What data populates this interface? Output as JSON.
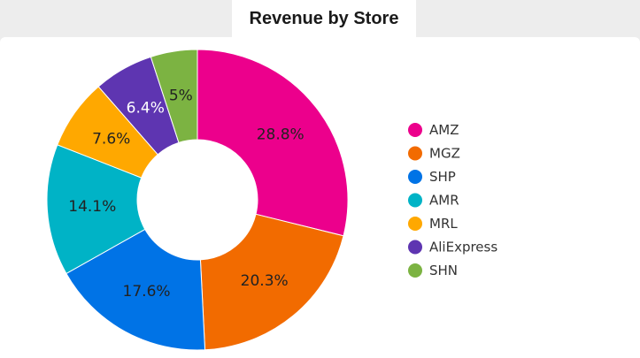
{
  "chart_data": {
    "type": "pie",
    "donut": true,
    "title": "Revenue by Store",
    "categories": [
      "AMZ",
      "MGZ",
      "SHP",
      "AMR",
      "MRL",
      "AliExpress",
      "SHN"
    ],
    "values": [
      28.8,
      20.3,
      17.6,
      14.1,
      7.6,
      6.4,
      5
    ],
    "labels": [
      "28.8%",
      "20.3%",
      "17.6%",
      "14.1%",
      "7.6%",
      "6.4%",
      "5%"
    ],
    "colors": [
      "#ec008c",
      "#f26b00",
      "#0073e6",
      "#00b3c6",
      "#ffa800",
      "#5e35b1",
      "#7cb342"
    ],
    "label_colors": [
      "#222222",
      "#222222",
      "#222222",
      "#222222",
      "#222222",
      "#ffffff",
      "#222222"
    ],
    "legend_position": "right"
  }
}
